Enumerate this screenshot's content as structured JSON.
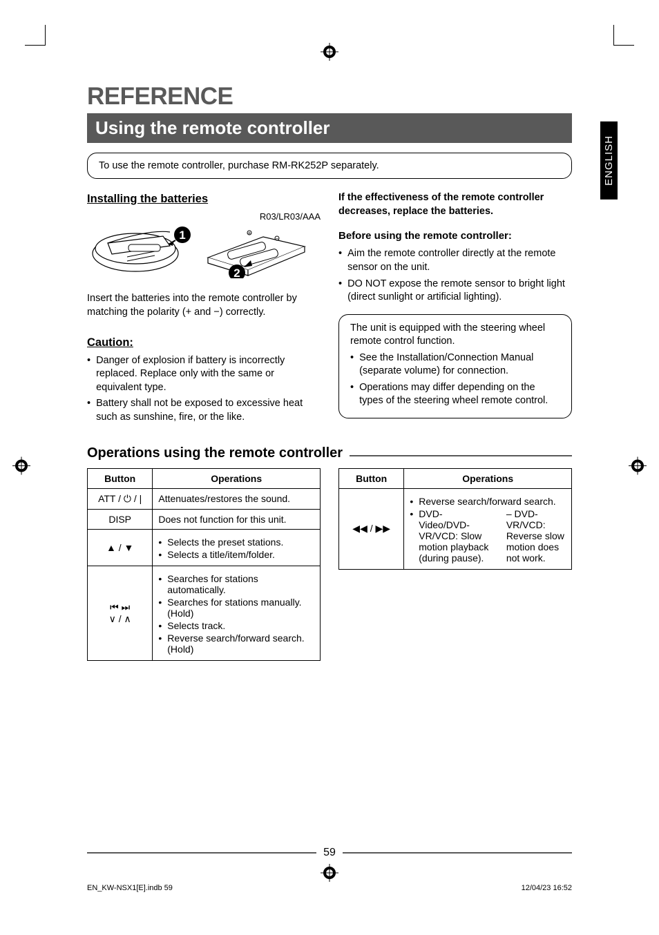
{
  "page": {
    "reference_title": "REFERENCE",
    "section_title": "Using the remote controller",
    "purchase_note": "To use the remote controller, purchase RM-RK252P separately.",
    "lang_tab": "ENGLISH",
    "page_number": "59",
    "footer_left": "EN_KW-NSX1[E].indb   59",
    "footer_right": "12/04/23   16:52"
  },
  "left_col": {
    "install_heading": "Installing the batteries",
    "battery_label": "R03/LR03/AAA",
    "insert_text": "Insert the batteries into the remote controller by matching the polarity (+ and −) correctly.",
    "caution_heading": "Caution:",
    "caution_items": [
      "Danger of explosion if battery is incorrectly replaced. Replace only with the same or equivalent type.",
      "Battery shall not be exposed to excessive heat such as sunshine, fire, or the like."
    ]
  },
  "right_col": {
    "effectiveness": "If the effectiveness of the remote controller decreases, replace the batteries.",
    "before_heading": "Before using the remote controller:",
    "before_items": [
      "Aim the remote controller directly at the remote sensor on the unit.",
      "DO NOT expose the remote sensor to bright light (direct sunlight or artificial lighting)."
    ],
    "steering_intro": "The unit is equipped with the steering wheel remote control function.",
    "steering_items": [
      "See the Installation/Connection Manual (separate volume) for connection.",
      "Operations may differ depending on the types of the steering wheel remote control."
    ]
  },
  "ops": {
    "heading": "Operations using the remote controller",
    "col_button": "Button",
    "col_ops": "Operations",
    "table1": [
      {
        "btn": "ATT / ⏻ / |",
        "ops_text": "Attenuates/restores the sound."
      },
      {
        "btn": "DISP",
        "ops_text": "Does not function for this unit."
      },
      {
        "btn": "▲ / ▼",
        "ops_list": [
          "Selects the preset stations.",
          "Selects a title/item/folder."
        ]
      },
      {
        "btn": "⏮ ⏭<br>∨ / ∧",
        "ops_list": [
          "Searches for stations automatically.",
          "Searches for stations manually. (Hold)",
          "Selects track.",
          "Reverse search/forward search. (Hold)"
        ]
      }
    ],
    "table2": [
      {
        "btn": "◀◀ / ▶▶",
        "ops_list": [
          "Reverse search/forward search.",
          "DVD-Video/DVD-VR/VCD: Slow motion playback (during pause)."
        ],
        "ops_sub": [
          "DVD-VR/VCD: Reverse slow motion does not work."
        ]
      }
    ]
  },
  "style": {
    "title_color": "#595959",
    "bar_bg": "#595959",
    "text_color": "#000000",
    "title_fontsize": 35,
    "subtitle_fontsize": 26,
    "body_fontsize": 14.5,
    "table_fontsize": 14
  }
}
